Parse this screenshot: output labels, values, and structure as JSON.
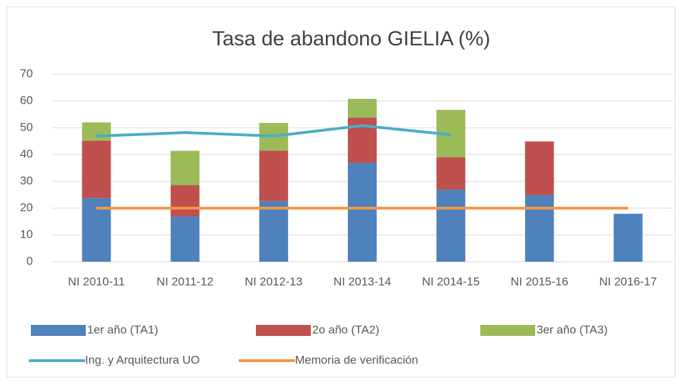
{
  "chart_data": {
    "type": "bar",
    "stacked": true,
    "title": "Tasa de abandono GIELIA (%)",
    "categories": [
      "NI 2010-11",
      "NI 2011-12",
      "NI 2012-13",
      "NI 2013-14",
      "NI 2014-15",
      "NI 2015-16",
      "NI 2016-17"
    ],
    "series": [
      {
        "name": "1er año (TA1)",
        "color": "#4f81bd",
        "values": [
          23.8,
          16.9,
          22.6,
          36.9,
          26.9,
          24.9,
          17.9
        ]
      },
      {
        "name": "2o año (TA2)",
        "color": "#c0504d",
        "values": [
          21.4,
          11.7,
          18.9,
          16.9,
          12.1,
          20.0,
          null
        ]
      },
      {
        "name": "3er año (TA3)",
        "color": "#9bbb59",
        "values": [
          6.8,
          12.8,
          10.3,
          7.0,
          17.7,
          null,
          null
        ]
      },
      {
        "name": "Ing. y Arquitectura UO",
        "type": "line",
        "color": "#4bacc6",
        "values": [
          46.9,
          48.2,
          46.9,
          50.8,
          47.4,
          null,
          null
        ]
      },
      {
        "name": "Memoria de verificación",
        "type": "line",
        "color": "#f79646",
        "values": [
          20,
          20,
          20,
          20,
          20,
          20,
          20
        ]
      }
    ],
    "ylim": [
      0,
      70
    ],
    "yticks": [
      0,
      10,
      20,
      30,
      40,
      50,
      60,
      70
    ],
    "grid": true,
    "legend": "bottom"
  }
}
